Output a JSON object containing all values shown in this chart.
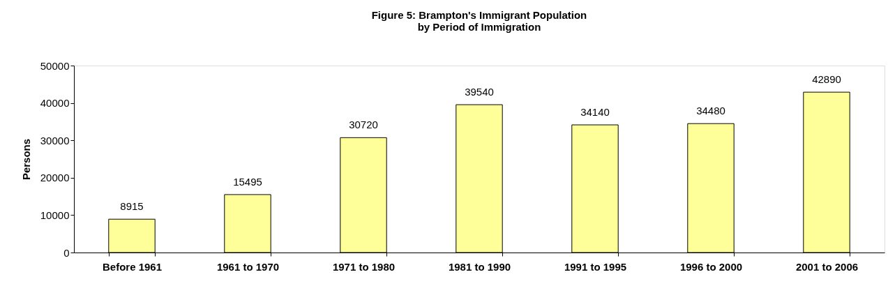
{
  "chart_data": {
    "type": "bar",
    "title": "Figure 5: Brampton's Immigrant Population\nby Period of Immigration",
    "ylabel": "Persons",
    "categories": [
      "Before 1961",
      "1961 to 1970",
      "1971 to 1980",
      "1981 to 1990",
      "1991 to 1995",
      "1996 to 2000",
      "2001 to 2006"
    ],
    "values": [
      8915,
      15495,
      30720,
      39540,
      34140,
      34480,
      42890
    ],
    "color": "#ffff99",
    "ylim": [
      0,
      50000
    ],
    "yticks": [
      0,
      10000,
      20000,
      30000,
      40000,
      50000
    ],
    "grid": false,
    "data_labels": true
  }
}
